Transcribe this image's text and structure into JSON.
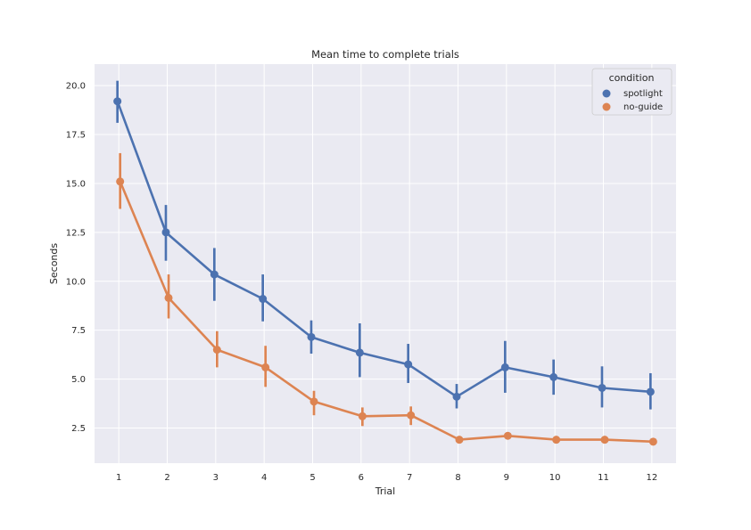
{
  "chart_data": {
    "type": "line",
    "title": "Mean time to complete trials",
    "xlabel": "Trial",
    "ylabel": "Seconds",
    "categories": [
      "1",
      "2",
      "3",
      "4",
      "5",
      "6",
      "7",
      "8",
      "9",
      "10",
      "11",
      "12"
    ],
    "ylim": [
      0.7,
      21.1
    ],
    "yticks": [
      "2.5",
      "5.0",
      "7.5",
      "10.0",
      "12.5",
      "15.0",
      "17.5",
      "20.0"
    ],
    "grid": true,
    "legend": {
      "title": "condition",
      "placement": "top-right"
    },
    "series": [
      {
        "name": "spotlight",
        "color": "#4c72b0",
        "values": [
          19.2,
          12.5,
          10.35,
          9.1,
          7.15,
          6.35,
          5.75,
          4.1,
          5.6,
          5.1,
          4.55,
          4.35
        ],
        "ci_low": [
          18.1,
          11.05,
          9.0,
          7.95,
          6.3,
          5.1,
          4.8,
          3.5,
          4.3,
          4.2,
          3.55,
          3.45
        ],
        "ci_high": [
          20.25,
          13.9,
          11.7,
          10.35,
          8.0,
          7.85,
          6.8,
          4.75,
          6.95,
          6.0,
          5.65,
          5.3
        ]
      },
      {
        "name": "no-guide",
        "color": "#dd8452",
        "values": [
          15.1,
          9.15,
          6.5,
          5.6,
          3.85,
          3.1,
          3.15,
          1.9,
          2.1,
          1.9,
          1.9,
          1.8
        ],
        "ci_low": [
          13.7,
          8.1,
          5.6,
          4.6,
          3.15,
          2.6,
          2.65,
          1.75,
          2.0,
          1.8,
          1.8,
          1.75
        ],
        "ci_high": [
          16.55,
          10.35,
          7.45,
          6.7,
          4.4,
          3.55,
          3.6,
          2.0,
          2.2,
          2.0,
          2.0,
          1.9
        ]
      }
    ]
  }
}
